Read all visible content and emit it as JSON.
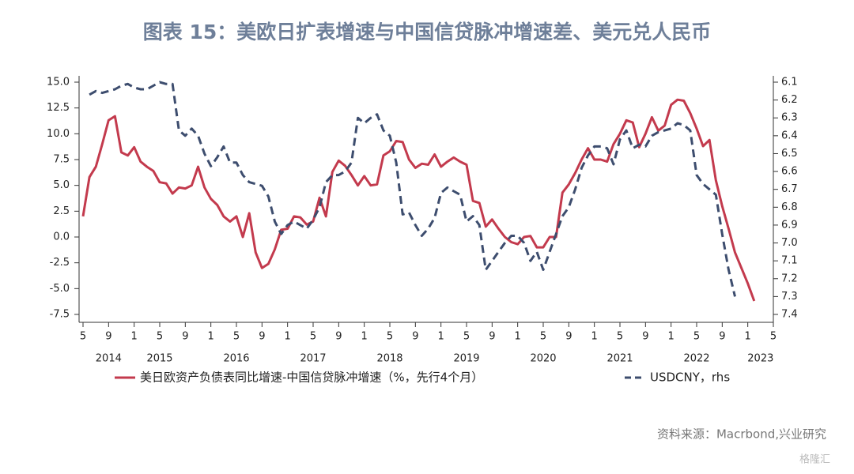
{
  "chart_data": {
    "type": "line",
    "title": "图表 15：美欧日扩表增速与中国信贷脉冲增速差、美元兑人民币",
    "source": "资料来源：Macrbond,兴业研究",
    "watermark": "格隆汇",
    "x": [
      "2014-05",
      "2014-06",
      "2014-07",
      "2014-08",
      "2014-09",
      "2014-10",
      "2014-11",
      "2014-12",
      "2015-01",
      "2015-02",
      "2015-03",
      "2015-04",
      "2015-05",
      "2015-06",
      "2015-07",
      "2015-08",
      "2015-09",
      "2015-10",
      "2015-11",
      "2015-12",
      "2016-01",
      "2016-02",
      "2016-03",
      "2016-04",
      "2016-05",
      "2016-06",
      "2016-07",
      "2016-08",
      "2016-09",
      "2016-10",
      "2016-11",
      "2016-12",
      "2017-01",
      "2017-02",
      "2017-03",
      "2017-04",
      "2017-05",
      "2017-06",
      "2017-07",
      "2017-08",
      "2017-09",
      "2017-10",
      "2017-11",
      "2017-12",
      "2018-01",
      "2018-02",
      "2018-03",
      "2018-04",
      "2018-05",
      "2018-06",
      "2018-07",
      "2018-08",
      "2018-09",
      "2018-10",
      "2018-11",
      "2018-12",
      "2019-01",
      "2019-02",
      "2019-03",
      "2019-04",
      "2019-05",
      "2019-06",
      "2019-07",
      "2019-08",
      "2019-09",
      "2019-10",
      "2019-11",
      "2019-12",
      "2020-01",
      "2020-02",
      "2020-03",
      "2020-04",
      "2020-05",
      "2020-06",
      "2020-07",
      "2020-08",
      "2020-09",
      "2020-10",
      "2020-11",
      "2020-12",
      "2021-01",
      "2021-02",
      "2021-03",
      "2021-04",
      "2021-05",
      "2021-06",
      "2021-07",
      "2021-08",
      "2021-09",
      "2021-10",
      "2021-11",
      "2021-12",
      "2022-01",
      "2022-02",
      "2022-03",
      "2022-04",
      "2022-05",
      "2022-06",
      "2022-07",
      "2022-08",
      "2022-09",
      "2022-10",
      "2022-11",
      "2022-12",
      "2023-01",
      "2023-02"
    ],
    "xlim": [
      "2014-05",
      "2023-05"
    ],
    "xticks": [
      {
        "value": "2014-05",
        "label": "5"
      },
      {
        "value": "2014-09",
        "label": "9"
      },
      {
        "value": "2015-01",
        "label": "1"
      },
      {
        "value": "2015-05",
        "label": "5"
      },
      {
        "value": "2015-09",
        "label": "9"
      },
      {
        "value": "2016-01",
        "label": "1"
      },
      {
        "value": "2016-05",
        "label": "5"
      },
      {
        "value": "2016-09",
        "label": "9"
      },
      {
        "value": "2017-01",
        "label": "1"
      },
      {
        "value": "2017-05",
        "label": "5"
      },
      {
        "value": "2017-09",
        "label": "9"
      },
      {
        "value": "2018-01",
        "label": "1"
      },
      {
        "value": "2018-05",
        "label": "5"
      },
      {
        "value": "2018-09",
        "label": "9"
      },
      {
        "value": "2019-01",
        "label": "1"
      },
      {
        "value": "2019-05",
        "label": "5"
      },
      {
        "value": "2019-09",
        "label": "9"
      },
      {
        "value": "2020-01",
        "label": "1"
      },
      {
        "value": "2020-05",
        "label": "5"
      },
      {
        "value": "2020-09",
        "label": "9"
      },
      {
        "value": "2021-01",
        "label": "1"
      },
      {
        "value": "2021-05",
        "label": "5"
      },
      {
        "value": "2021-09",
        "label": "9"
      },
      {
        "value": "2022-01",
        "label": "1"
      },
      {
        "value": "2022-05",
        "label": "5"
      },
      {
        "value": "2022-09",
        "label": "9"
      },
      {
        "value": "2023-01",
        "label": "1"
      },
      {
        "value": "2023-05",
        "label": "5"
      }
    ],
    "year_labels": [
      "2014",
      "2015",
      "2016",
      "2017",
      "2018",
      "2019",
      "2020",
      "2021",
      "2022",
      "2023"
    ],
    "ylim": [
      -7.5,
      15
    ],
    "yticks": [
      {
        "value": 15,
        "label": "15.0"
      },
      12.5,
      {
        "value": 10,
        "label": "10.0"
      },
      7.5,
      {
        "value": 5,
        "label": "5.0"
      },
      2.5,
      {
        "value": 0,
        "label": "0.0"
      },
      -2.5,
      {
        "value": -5,
        "label": "-5.0"
      },
      -7.5
    ],
    "y2lim": [
      7.4,
      6.1
    ],
    "y2ticks": [
      6.1,
      6.2,
      6.3,
      6.4,
      6.5,
      6.6,
      6.7,
      6.8,
      6.9,
      {
        "value": 7,
        "label": "7.0"
      },
      7.1,
      7.2,
      7.3,
      7.4
    ],
    "grid": false,
    "legend": "bottom",
    "series": [
      {
        "name": "美日欧资产负债表同比增速-中国信贷脉冲增速（%，先行4个月）",
        "color": "#c33a4d",
        "axis": "y",
        "values": [
          2.0,
          5.8,
          6.8,
          9.0,
          11.3,
          11.7,
          8.2,
          7.9,
          8.7,
          7.3,
          6.8,
          6.4,
          5.3,
          5.2,
          4.2,
          4.8,
          4.7,
          5.0,
          6.8,
          4.8,
          3.7,
          3.1,
          2.0,
          1.5,
          2.0,
          0.0,
          2.3,
          -1.5,
          -3.0,
          -2.6,
          -1.2,
          0.7,
          0.8,
          2.0,
          1.9,
          1.2,
          1.5,
          3.8,
          2.0,
          6.3,
          7.4,
          6.9,
          6.0,
          5.0,
          5.9,
          5.0,
          5.1,
          7.9,
          8.3,
          9.3,
          9.2,
          7.5,
          6.7,
          7.1,
          7.0,
          8.0,
          6.8,
          7.3,
          7.7,
          7.3,
          7.0,
          3.5,
          3.3,
          1.0,
          1.7,
          0.8,
          0.0,
          -0.5,
          -0.7,
          0.0,
          0.1,
          -1.0,
          -1.0,
          0.0,
          0.0,
          4.3,
          5.1,
          6.2,
          7.5,
          8.6,
          7.5,
          7.5,
          7.3,
          9.0,
          10.0,
          11.3,
          11.1,
          8.7,
          10.0,
          11.6,
          10.3,
          10.8,
          12.8,
          13.3,
          13.2,
          12.0,
          10.5,
          8.8,
          9.4,
          5.5,
          3.0,
          0.8,
          -1.5,
          -3.0,
          -4.5,
          -6.2
        ]
      },
      {
        "name": "USDCNY，rhs",
        "color": "#3d4d6e",
        "axis": "y2",
        "dashed": true,
        "values": [
          null,
          6.17,
          6.15,
          6.16,
          6.15,
          6.14,
          6.12,
          6.11,
          6.13,
          6.14,
          6.14,
          6.12,
          6.1,
          6.11,
          6.11,
          6.37,
          6.4,
          6.36,
          6.4,
          6.5,
          6.57,
          6.52,
          6.46,
          6.55,
          6.55,
          6.62,
          6.66,
          6.67,
          6.68,
          6.74,
          6.88,
          6.95,
          6.9,
          6.88,
          6.9,
          6.92,
          6.87,
          6.8,
          6.66,
          6.62,
          6.62,
          6.6,
          6.55,
          6.3,
          6.33,
          6.3,
          6.28,
          6.37,
          6.4,
          6.55,
          6.84,
          6.83,
          6.9,
          6.96,
          6.92,
          6.86,
          6.72,
          6.69,
          6.71,
          6.73,
          6.88,
          6.85,
          6.9,
          7.15,
          7.1,
          7.05,
          7.0,
          6.96,
          6.96,
          7.0,
          7.1,
          7.05,
          7.15,
          7.05,
          6.95,
          6.85,
          6.8,
          6.7,
          6.58,
          6.51,
          6.46,
          6.46,
          6.47,
          6.56,
          6.42,
          6.37,
          6.47,
          6.45,
          6.46,
          6.4,
          6.38,
          6.37,
          6.36,
          6.33,
          6.34,
          6.37,
          6.62,
          6.67,
          6.7,
          6.73,
          6.95,
          7.15,
          7.3,
          null,
          null,
          null
        ]
      }
    ]
  }
}
